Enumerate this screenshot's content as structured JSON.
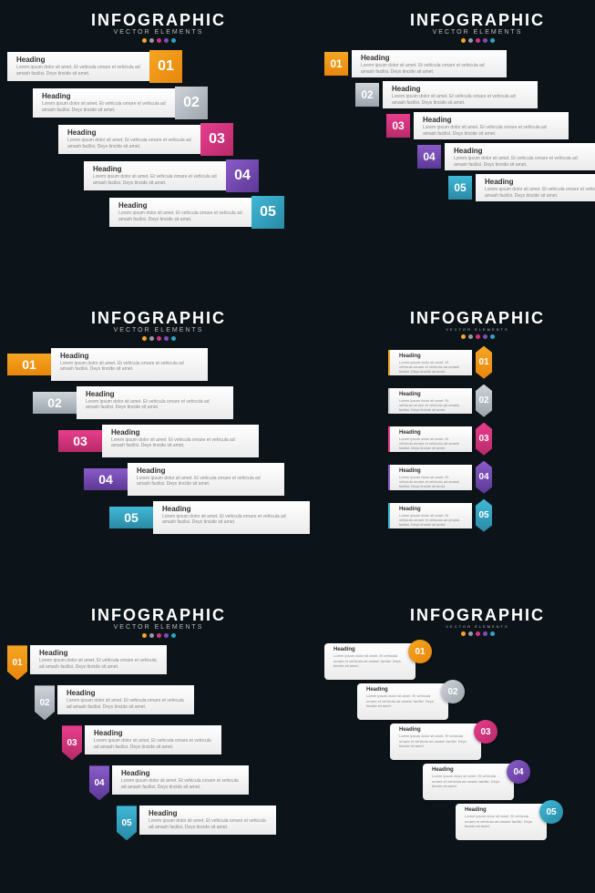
{
  "title": "INFOGRAPHIC",
  "subtitle": "VECTOR ELEMENTS",
  "dot_colors": [
    "#f5a623",
    "#9b9b9b",
    "#d63384",
    "#7b4fb5",
    "#2aa5c7"
  ],
  "heading": "Heading",
  "body": "Lorem ipsum dolor sit amet. Et vehicula ornare et vehicula ad amash facilisi. Deys tincide sit amet.",
  "steps": [
    {
      "n": "01",
      "c1": "#f5a623",
      "c2": "#e8860b"
    },
    {
      "n": "02",
      "c1": "#cfd4d9",
      "c2": "#9ba4ad"
    },
    {
      "n": "03",
      "c1": "#e83e8c",
      "c2": "#b82a6a"
    },
    {
      "n": "04",
      "c1": "#8a5cc9",
      "c2": "#5d3896"
    },
    {
      "n": "05",
      "c1": "#3fb8d6",
      "c2": "#2a8aa5"
    }
  ],
  "panels": {
    "p1": {
      "badge": "cube",
      "side": "right"
    },
    "p2": {
      "badge": "square",
      "side": "left"
    },
    "p3": {
      "badge": "ribbon",
      "side": "left"
    },
    "p4": {
      "badge": "arrow",
      "side": "right"
    },
    "p5": {
      "badge": "shield",
      "side": "left"
    },
    "p6": {
      "badge": "circle",
      "side": "right"
    }
  },
  "background": "#0d1419",
  "card_bg": "#ffffff",
  "card_text": "#333333",
  "card_sub": "#888888"
}
